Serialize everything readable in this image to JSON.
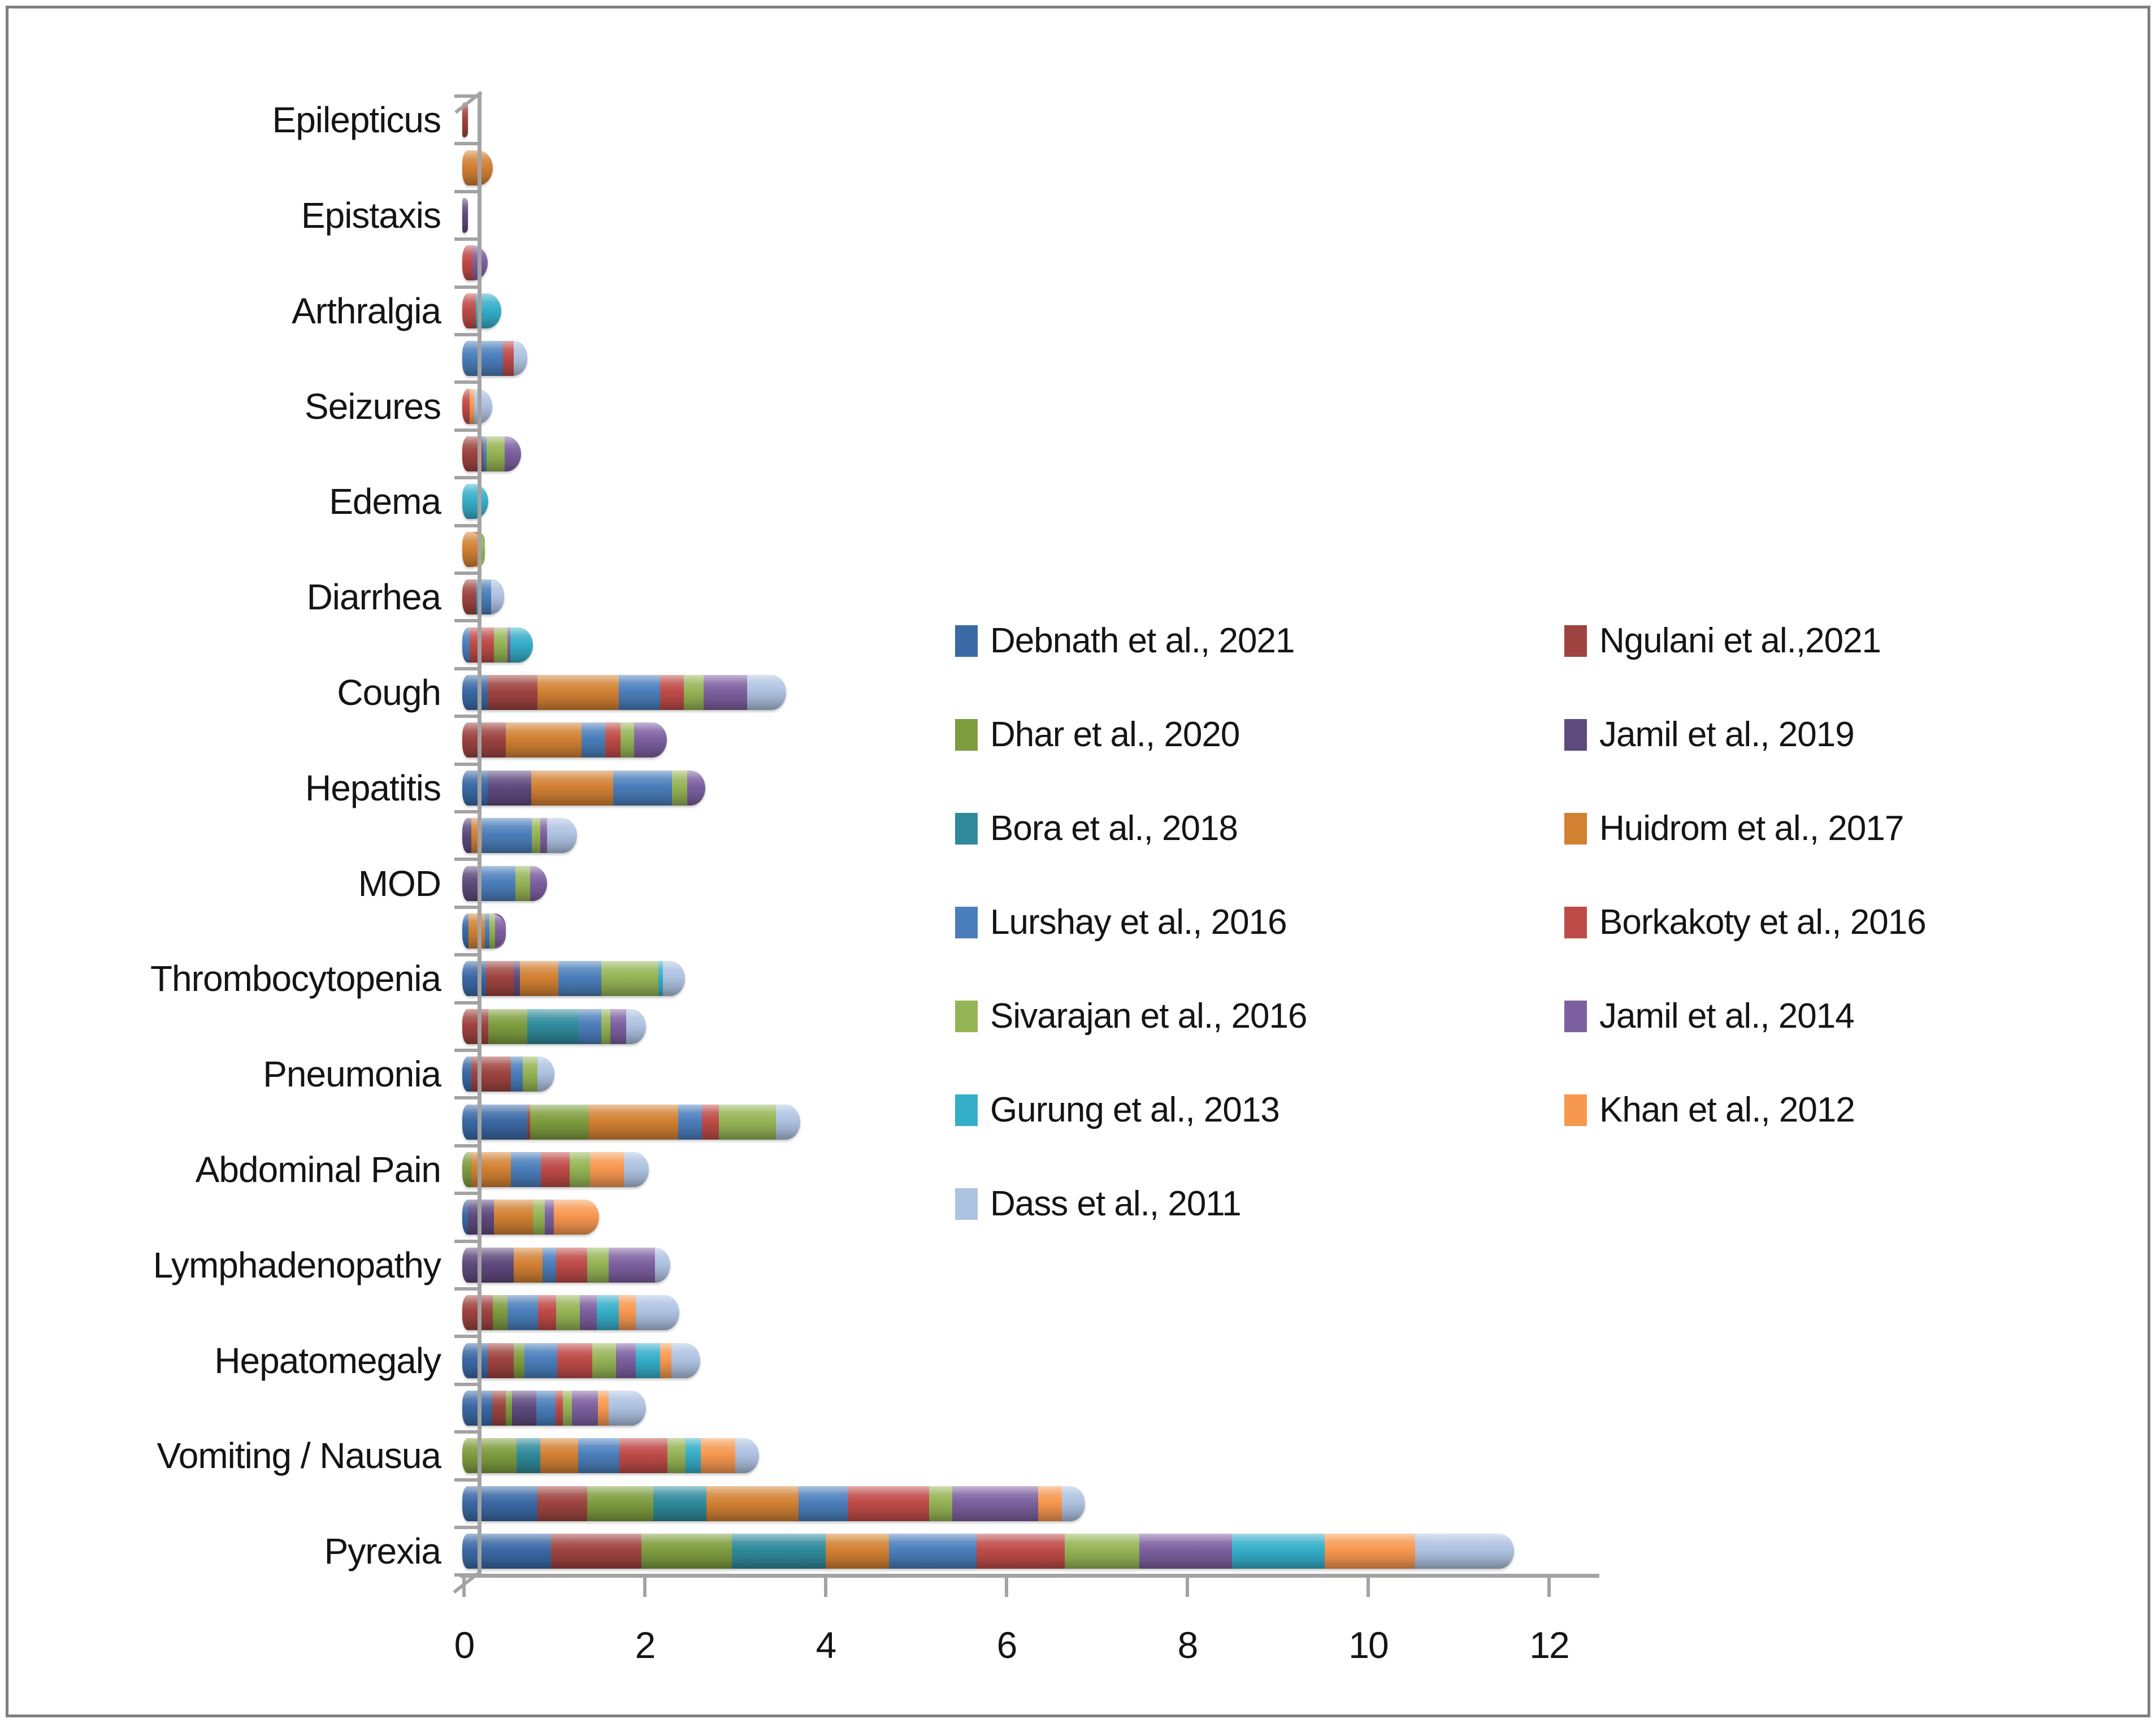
{
  "chart_data": {
    "type": "bar",
    "orientation": "horizontal",
    "stacked": true,
    "title": "",
    "xlabel": "",
    "ylabel": "",
    "xlim": [
      0,
      12
    ],
    "x_tick_labels": [
      "0",
      "2",
      "4",
      "6",
      "8",
      "10",
      "12"
    ],
    "grid": false,
    "legend_position": "center-right-two-columns",
    "axis_color": "#a3a3a3",
    "series": [
      {
        "id": "debnath",
        "label": "Debnath et al., 2021",
        "color": "#3B69A5"
      },
      {
        "id": "ngulani",
        "label": "Ngulani et al.,2021",
        "color": "#9E4440"
      },
      {
        "id": "dhar",
        "label": "Dhar et al., 2020",
        "color": "#7E9D3F"
      },
      {
        "id": "jamil2019",
        "label": "Jamil et al., 2019",
        "color": "#5F4A7E"
      },
      {
        "id": "bora",
        "label": "Bora et al., 2018",
        "color": "#2F8A9B"
      },
      {
        "id": "huidrom",
        "label": "Huidrom et al., 2017",
        "color": "#D28133"
      },
      {
        "id": "lurshay",
        "label": "Lurshay et al., 2016",
        "color": "#4A7EBB"
      },
      {
        "id": "borkakoty",
        "label": "Borkakoty et al., 2016",
        "color": "#BE4B48"
      },
      {
        "id": "sivarajan",
        "label": "Sivarajan et al., 2016",
        "color": "#95B455"
      },
      {
        "id": "jamil2014",
        "label": "Jamil et al., 2014",
        "color": "#7D60A0"
      },
      {
        "id": "gurung",
        "label": "Gurung et al., 2013",
        "color": "#35AEC9"
      },
      {
        "id": "khan",
        "label": "Khan et al., 2012",
        "color": "#F79850"
      },
      {
        "id": "dass",
        "label": "Dass et al., 2011",
        "color": "#AEC2E1"
      }
    ],
    "categories": [
      {
        "label": "Epilepticus",
        "bars": [
          {
            "segments": [
              [
                "ngulani",
                0.06
              ]
            ]
          },
          {
            "segments": [
              [
                "huidrom",
                0.34
              ]
            ]
          }
        ]
      },
      {
        "label": "Epistaxis",
        "bars": [
          {
            "segments": [
              [
                "jamil2019",
                0.06
              ]
            ]
          },
          {
            "segments": [
              [
                "borkakoty",
                0.12
              ],
              [
                "jamil2014",
                0.16
              ]
            ]
          }
        ]
      },
      {
        "label": "Arthralgia",
        "bars": [
          {
            "segments": [
              [
                "borkakoty",
                0.15
              ],
              [
                "gurung",
                0.28
              ]
            ]
          },
          {
            "segments": [
              [
                "lurshay",
                0.45
              ],
              [
                "borkakoty",
                0.12
              ],
              [
                "dass",
                0.15
              ]
            ]
          }
        ]
      },
      {
        "label": "Seizures",
        "bars": [
          {
            "segments": [
              [
                "borkakoty",
                0.08
              ],
              [
                "khan",
                0.05
              ],
              [
                "dass",
                0.2
              ]
            ]
          },
          {
            "segments": [
              [
                "ngulani",
                0.23
              ],
              [
                "lurshay",
                0.04
              ],
              [
                "sivarajan",
                0.2
              ],
              [
                "jamil2014",
                0.18
              ]
            ]
          }
        ]
      },
      {
        "label": "Edema",
        "bars": [
          {
            "segments": [
              [
                "gurung",
                0.29
              ]
            ]
          },
          {
            "segments": [
              [
                "huidrom",
                0.17
              ],
              [
                "sivarajan",
                0.08
              ]
            ]
          }
        ]
      },
      {
        "label": "Diarrhea",
        "bars": [
          {
            "segments": [
              [
                "ngulani",
                0.15
              ],
              [
                "lurshay",
                0.17
              ],
              [
                "dass",
                0.14
              ]
            ]
          },
          {
            "segments": [
              [
                "lurshay",
                0.08
              ],
              [
                "borkakoty",
                0.27
              ],
              [
                "sivarajan",
                0.15
              ],
              [
                "jamil2014",
                0.03
              ],
              [
                "gurung",
                0.25
              ]
            ]
          }
        ]
      },
      {
        "label": "Cough",
        "bars": [
          {
            "segments": [
              [
                "debnath",
                0.28
              ],
              [
                "ngulani",
                0.55
              ],
              [
                "huidrom",
                0.9
              ],
              [
                "lurshay",
                0.46
              ],
              [
                "borkakoty",
                0.26
              ],
              [
                "sivarajan",
                0.22
              ],
              [
                "jamil2014",
                0.48
              ],
              [
                "dass",
                0.43
              ]
            ]
          },
          {
            "segments": [
              [
                "ngulani",
                0.48
              ],
              [
                "huidrom",
                0.84
              ],
              [
                "lurshay",
                0.26
              ],
              [
                "borkakoty",
                0.17
              ],
              [
                "sivarajan",
                0.15
              ],
              [
                "jamil2014",
                0.36
              ]
            ]
          }
        ]
      },
      {
        "label": "Hepatitis",
        "bars": [
          {
            "segments": [
              [
                "debnath",
                0.28
              ],
              [
                "jamil2019",
                0.48
              ],
              [
                "huidrom",
                0.91
              ],
              [
                "lurshay",
                0.65
              ],
              [
                "sivarajan",
                0.17
              ],
              [
                "jamil2014",
                0.2
              ]
            ]
          },
          {
            "segments": [
              [
                "jamil2019",
                0.1
              ],
              [
                "huidrom",
                0.12
              ],
              [
                "lurshay",
                0.55
              ],
              [
                "sivarajan",
                0.09
              ],
              [
                "jamil2014",
                0.08
              ],
              [
                "dass",
                0.33
              ]
            ]
          }
        ]
      },
      {
        "label": "MOD",
        "bars": [
          {
            "segments": [
              [
                "jamil2019",
                0.17
              ],
              [
                "lurshay",
                0.42
              ],
              [
                "sivarajan",
                0.16
              ],
              [
                "jamil2014",
                0.19
              ]
            ]
          },
          {
            "segments": [
              [
                "debnath",
                0.07
              ],
              [
                "huidrom",
                0.18
              ],
              [
                "lurshay",
                0.05
              ],
              [
                "sivarajan",
                0.06
              ],
              [
                "jamil2014",
                0.12
              ]
            ]
          }
        ]
      },
      {
        "label": "Thrombocytopenia",
        "bars": [
          {
            "segments": [
              [
                "debnath",
                0.26
              ],
              [
                "ngulani",
                0.31
              ],
              [
                "jamil2019",
                0.07
              ],
              [
                "huidrom",
                0.42
              ],
              [
                "lurshay",
                0.48
              ],
              [
                "sivarajan",
                0.63
              ],
              [
                "gurung",
                0.05
              ],
              [
                "dass",
                0.24
              ]
            ]
          },
          {
            "segments": [
              [
                "ngulani",
                0.29
              ],
              [
                "dhar",
                0.43
              ],
              [
                "bora",
                0.56
              ],
              [
                "lurshay",
                0.26
              ],
              [
                "sivarajan",
                0.1
              ],
              [
                "jamil2014",
                0.17
              ],
              [
                "dass",
                0.22
              ]
            ]
          }
        ]
      },
      {
        "label": "Pneumonia",
        "bars": [
          {
            "segments": [
              [
                "debnath",
                0.1
              ],
              [
                "ngulani",
                0.44
              ],
              [
                "lurshay",
                0.13
              ],
              [
                "sivarajan",
                0.16
              ],
              [
                "dass",
                0.19
              ]
            ]
          },
          {
            "segments": [
              [
                "debnath",
                0.72
              ],
              [
                "ngulani",
                0.03
              ],
              [
                "dhar",
                0.65
              ],
              [
                "huidrom",
                0.99
              ],
              [
                "lurshay",
                0.26
              ],
              [
                "borkakoty",
                0.19
              ],
              [
                "sivarajan",
                0.63
              ],
              [
                "dass",
                0.27
              ]
            ]
          }
        ]
      },
      {
        "label": "Abdominal Pain",
        "bars": [
          {
            "segments": [
              [
                "dhar",
                0.1
              ],
              [
                "huidrom",
                0.44
              ],
              [
                "lurshay",
                0.33
              ],
              [
                "borkakoty",
                0.32
              ],
              [
                "sivarajan",
                0.22
              ],
              [
                "khan",
                0.38
              ],
              [
                "dass",
                0.27
              ]
            ]
          },
          {
            "segments": [
              [
                "debnath",
                0.06
              ],
              [
                "jamil2019",
                0.29
              ],
              [
                "huidrom",
                0.43
              ],
              [
                "sivarajan",
                0.13
              ],
              [
                "jamil2014",
                0.1
              ],
              [
                "khan",
                0.5
              ]
            ]
          }
        ]
      },
      {
        "label": "Lymphadenopathy",
        "bars": [
          {
            "segments": [
              [
                "jamil2019",
                0.57
              ],
              [
                "huidrom",
                0.32
              ],
              [
                "lurshay",
                0.15
              ],
              [
                "borkakoty",
                0.34
              ],
              [
                "sivarajan",
                0.24
              ],
              [
                "jamil2014",
                0.51
              ],
              [
                "dass",
                0.17
              ]
            ]
          },
          {
            "segments": [
              [
                "ngulani",
                0.34
              ],
              [
                "dhar",
                0.16
              ],
              [
                "lurshay",
                0.34
              ],
              [
                "borkakoty",
                0.2
              ],
              [
                "sivarajan",
                0.26
              ],
              [
                "jamil2014",
                0.19
              ],
              [
                "gurung",
                0.24
              ],
              [
                "khan",
                0.19
              ],
              [
                "dass",
                0.48
              ]
            ]
          }
        ]
      },
      {
        "label": "Hepatomegaly",
        "bars": [
          {
            "segments": [
              [
                "debnath",
                0.28
              ],
              [
                "ngulani",
                0.29
              ],
              [
                "dhar",
                0.12
              ],
              [
                "lurshay",
                0.36
              ],
              [
                "borkakoty",
                0.39
              ],
              [
                "sivarajan",
                0.26
              ],
              [
                "jamil2014",
                0.22
              ],
              [
                "gurung",
                0.27
              ],
              [
                "khan",
                0.12
              ],
              [
                "dass",
                0.32
              ]
            ]
          },
          {
            "segments": [
              [
                "debnath",
                0.33
              ],
              [
                "ngulani",
                0.15
              ],
              [
                "dhar",
                0.07
              ],
              [
                "jamil2019",
                0.27
              ],
              [
                "lurshay",
                0.21
              ],
              [
                "borkakoty",
                0.08
              ],
              [
                "sivarajan",
                0.1
              ],
              [
                "jamil2014",
                0.29
              ],
              [
                "khan",
                0.12
              ],
              [
                "dass",
                0.41
              ]
            ]
          }
        ]
      },
      {
        "label": "Vomiting / Nausua",
        "bars": [
          {
            "segments": [
              [
                "dhar",
                0.6
              ],
              [
                "bora",
                0.26
              ],
              [
                "huidrom",
                0.42
              ],
              [
                "lurshay",
                0.46
              ],
              [
                "borkakoty",
                0.53
              ],
              [
                "sivarajan",
                0.2
              ],
              [
                "gurung",
                0.17
              ],
              [
                "khan",
                0.38
              ],
              [
                "dass",
                0.26
              ]
            ]
          },
          {
            "segments": [
              [
                "debnath",
                0.83
              ],
              [
                "ngulani",
                0.55
              ],
              [
                "dhar",
                0.73
              ],
              [
                "bora",
                0.59
              ],
              [
                "huidrom",
                1.02
              ],
              [
                "lurshay",
                0.54
              ],
              [
                "borkakoty",
                0.9
              ],
              [
                "sivarajan",
                0.26
              ],
              [
                "jamil2014",
                0.95
              ],
              [
                "khan",
                0.26
              ],
              [
                "dass",
                0.26
              ]
            ]
          }
        ]
      },
      {
        "label": "Pyrexia",
        "bars": [
          {
            "segments": [
              [
                "debnath",
                0.98
              ],
              [
                "ngulani",
                1.0
              ],
              [
                "dhar",
                1.0
              ],
              [
                "bora",
                1.04
              ],
              [
                "huidrom",
                0.7
              ],
              [
                "lurshay",
                0.97
              ],
              [
                "borkakoty",
                0.97
              ],
              [
                "sivarajan",
                0.83
              ],
              [
                "jamil2014",
                1.02
              ],
              [
                "gurung",
                1.03
              ],
              [
                "khan",
                1.0
              ],
              [
                "dass",
                1.09
              ]
            ]
          }
        ]
      }
    ]
  }
}
